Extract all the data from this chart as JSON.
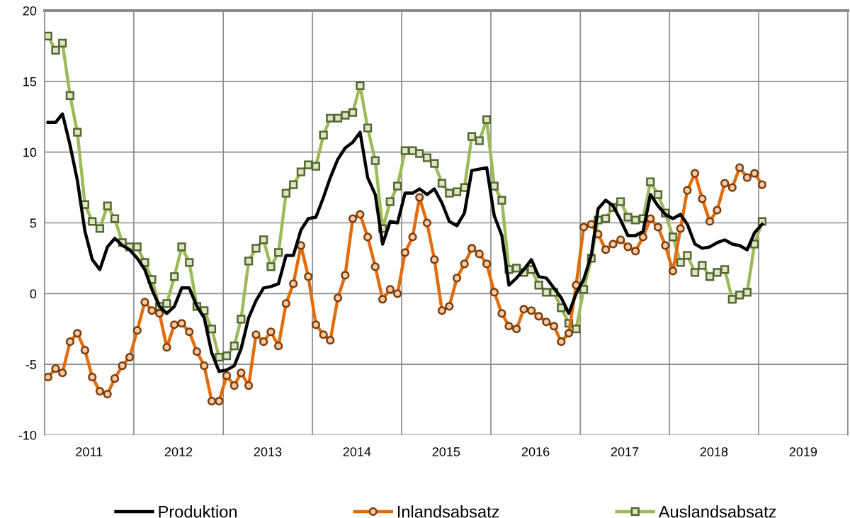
{
  "chart_data": {
    "type": "line",
    "x": [
      "2011-01-15",
      "2011-02-15",
      "2011-03-15",
      "2011-04-15",
      "2011-05-15",
      "2011-06-15",
      "2011-07-15",
      "2011-08-15",
      "2011-09-15",
      "2011-10-15",
      "2011-11-15",
      "2011-12-15",
      "2012-01-15",
      "2012-02-15",
      "2012-03-15",
      "2012-04-15",
      "2012-05-15",
      "2012-06-15",
      "2012-07-15",
      "2012-08-15",
      "2012-09-15",
      "2012-10-15",
      "2012-11-15",
      "2012-12-15",
      "2013-01-15",
      "2013-02-15",
      "2013-03-15",
      "2013-04-15",
      "2013-05-15",
      "2013-06-15",
      "2013-07-15",
      "2013-08-15",
      "2013-09-15",
      "2013-10-15",
      "2013-11-15",
      "2013-12-15",
      "2014-01-15",
      "2014-02-15",
      "2014-03-15",
      "2014-04-15",
      "2014-05-15",
      "2014-06-15",
      "2014-07-15",
      "2014-08-15",
      "2014-09-15",
      "2014-10-15",
      "2014-11-15",
      "2014-12-15",
      "2015-01-15",
      "2015-02-15",
      "2015-03-15",
      "2015-04-15",
      "2015-05-15",
      "2015-06-15",
      "2015-07-15",
      "2015-08-15",
      "2015-09-15",
      "2015-10-15",
      "2015-11-15",
      "2015-12-15",
      "2016-01-15",
      "2016-02-15",
      "2016-03-15",
      "2016-04-15",
      "2016-05-15",
      "2016-06-15",
      "2016-07-15",
      "2016-08-15",
      "2016-09-15",
      "2016-10-15",
      "2016-11-15",
      "2016-12-15",
      "2017-01-15",
      "2017-02-15",
      "2017-03-15",
      "2017-04-15",
      "2017-05-15",
      "2017-06-15",
      "2017-07-15",
      "2017-08-15",
      "2017-09-15",
      "2017-10-15",
      "2017-11-15",
      "2017-12-15",
      "2018-01-15",
      "2018-02-15",
      "2018-03-15",
      "2018-04-15",
      "2018-05-15",
      "2018-06-15",
      "2018-07-15",
      "2018-08-15",
      "2018-09-15",
      "2018-10-15",
      "2018-11-15",
      "2018-12-15",
      "2019-01-15"
    ],
    "series": [
      {
        "name": "Produktion",
        "color": "#000000",
        "marker": "none",
        "values": [
          12.1,
          12.1,
          12.7,
          10.5,
          8.0,
          4.4,
          2.4,
          1.7,
          3.3,
          3.9,
          3.4,
          3.1,
          2.5,
          1.7,
          0.3,
          -0.9,
          -1.4,
          -0.9,
          0.4,
          0.4,
          -0.9,
          -1.7,
          -4.2,
          -5.5,
          -5.4,
          -5.1,
          -3.9,
          -1.7,
          -0.5,
          0.4,
          0.5,
          0.7,
          2.7,
          2.7,
          4.5,
          5.3,
          5.4,
          6.8,
          8.2,
          9.5,
          10.3,
          10.7,
          11.4,
          8.2,
          7.0,
          3.5,
          5.1,
          5.0,
          7.1,
          7.1,
          7.4,
          7.0,
          7.4,
          6.4,
          5.1,
          4.8,
          5.7,
          8.7,
          8.8,
          8.9,
          5.5,
          4.1,
          0.6,
          1.1,
          1.7,
          2.4,
          1.2,
          1.1,
          0.4,
          -0.3,
          -1.4,
          0.0,
          1.0,
          2.7,
          6.0,
          6.6,
          6.2,
          5.2,
          4.1,
          4.1,
          4.4,
          7.0,
          6.2,
          5.6,
          5.3,
          5.6,
          4.9,
          3.5,
          3.2,
          3.3,
          3.6,
          3.8,
          3.5,
          3.4,
          3.1,
          4.3,
          4.9
        ]
      },
      {
        "name": "Inlandsabsatz",
        "color": "#e36c0a",
        "marker": "circle",
        "values": [
          -5.9,
          -5.3,
          -5.6,
          -3.4,
          -2.8,
          -4.0,
          -5.9,
          -6.9,
          -7.1,
          -6.0,
          -5.1,
          -4.5,
          -2.6,
          -0.6,
          -1.2,
          -1.4,
          -3.8,
          -2.2,
          -2.1,
          -2.7,
          -4.1,
          -5.1,
          -7.6,
          -7.6,
          -5.8,
          -6.5,
          -5.6,
          -6.5,
          -2.9,
          -3.4,
          -2.7,
          -3.7,
          -0.7,
          0.7,
          3.4,
          1.2,
          -2.2,
          -2.9,
          -3.3,
          -0.3,
          1.3,
          5.3,
          5.6,
          4.0,
          1.9,
          -0.4,
          0.3,
          0.0,
          2.9,
          4.0,
          6.8,
          5.0,
          2.4,
          -1.2,
          -0.9,
          1.1,
          2.1,
          3.2,
          2.8,
          2.1,
          0.1,
          -1.4,
          -2.3,
          -2.5,
          -1.1,
          -1.2,
          -1.6,
          -2.0,
          -2.3,
          -3.4,
          -2.8,
          0.6,
          4.7,
          4.9,
          4.2,
          3.1,
          3.5,
          3.8,
          3.3,
          3.0,
          4.0,
          5.3,
          4.7,
          3.4,
          1.6,
          4.6,
          7.3,
          8.5,
          6.7,
          5.1,
          5.9,
          7.8,
          7.5,
          8.9,
          8.2,
          8.5,
          7.7
        ]
      },
      {
        "name": "Auslandsabsatz",
        "color": "#9bbb59",
        "marker": "square",
        "values": [
          18.2,
          17.2,
          17.7,
          14.0,
          11.4,
          6.3,
          5.1,
          4.6,
          6.2,
          5.3,
          3.6,
          3.3,
          3.3,
          2.2,
          1.0,
          -0.9,
          -0.7,
          1.2,
          3.3,
          2.2,
          -0.9,
          -1.2,
          -2.5,
          -4.5,
          -4.4,
          -3.7,
          -1.8,
          2.3,
          3.2,
          3.8,
          1.9,
          2.9,
          7.1,
          7.7,
          8.6,
          9.1,
          9.0,
          11.2,
          12.4,
          12.4,
          12.6,
          12.8,
          14.7,
          11.7,
          9.4,
          4.6,
          6.5,
          7.6,
          10.1,
          10.1,
          9.9,
          9.6,
          9.2,
          7.8,
          7.1,
          7.2,
          7.5,
          11.1,
          10.8,
          12.3,
          7.6,
          6.6,
          1.7,
          1.8,
          1.5,
          1.7,
          0.6,
          0.1,
          0.1,
          -1.0,
          -2.1,
          -2.5,
          0.3,
          2.5,
          5.2,
          5.3,
          6.1,
          6.5,
          5.4,
          5.2,
          5.3,
          7.9,
          7.0,
          5.7,
          4.0,
          2.2,
          2.7,
          1.5,
          2.0,
          1.2,
          1.5,
          1.7,
          -0.4,
          -0.1,
          0.1,
          3.5,
          5.1
        ]
      }
    ],
    "xlim": [
      "2011-01-01",
      "2020-01-01"
    ],
    "xticks": [
      {
        "value": "2011-01-01",
        "label": null
      },
      {
        "value": "2012-01-01",
        "label": null
      },
      {
        "value": "2013-01-01",
        "label": null
      },
      {
        "value": "2014-01-01",
        "label": null
      },
      {
        "value": "2015-01-01",
        "label": null
      },
      {
        "value": "2016-01-01",
        "label": null
      },
      {
        "value": "2017-01-01",
        "label": null
      },
      {
        "value": "2018-01-01",
        "label": null
      },
      {
        "value": "2019-01-01",
        "label": null
      },
      {
        "value": "2020-01-01",
        "label": null
      },
      {
        "value": "2011-07-02",
        "label": "2011"
      },
      {
        "value": "2012-07-02",
        "label": "2012"
      },
      {
        "value": "2013-07-02",
        "label": "2013"
      },
      {
        "value": "2014-07-02",
        "label": "2014"
      },
      {
        "value": "2015-07-02",
        "label": "2015"
      },
      {
        "value": "2016-07-02",
        "label": "2016"
      },
      {
        "value": "2017-07-02",
        "label": "2017"
      },
      {
        "value": "2018-07-02",
        "label": "2018"
      },
      {
        "value": "2019-07-02",
        "label": "2019"
      }
    ],
    "ylim": [
      -10,
      20
    ],
    "yticks": [
      -10,
      -5,
      0,
      5,
      10,
      15,
      20
    ],
    "grid": true,
    "legend": "bottom"
  }
}
